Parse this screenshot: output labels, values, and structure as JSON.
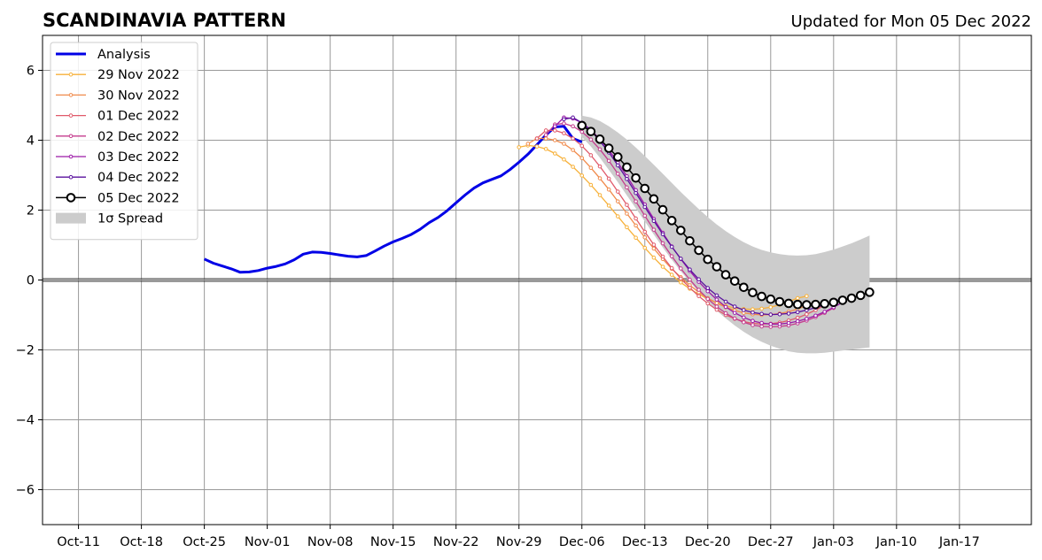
{
  "chart_data": {
    "type": "line",
    "title": "SCANDINAVIA PATTERN",
    "subtitle": "Updated for Mon 05 Dec 2022",
    "xlabel": "",
    "ylabel": "",
    "x_range": [
      "2022-10-07",
      "2023-01-25"
    ],
    "ylim": [
      -7,
      7
    ],
    "grid": true,
    "legend_position": "top-left",
    "x_ticks": [
      {
        "date": "2022-10-11",
        "label": "Oct-11"
      },
      {
        "date": "2022-10-18",
        "label": "Oct-18"
      },
      {
        "date": "2022-10-25",
        "label": "Oct-25"
      },
      {
        "date": "2022-11-01",
        "label": "Nov-01"
      },
      {
        "date": "2022-11-08",
        "label": "Nov-08"
      },
      {
        "date": "2022-11-15",
        "label": "Nov-15"
      },
      {
        "date": "2022-11-22",
        "label": "Nov-22"
      },
      {
        "date": "2022-11-29",
        "label": "Nov-29"
      },
      {
        "date": "2022-12-06",
        "label": "Dec-06"
      },
      {
        "date": "2022-12-13",
        "label": "Dec-13"
      },
      {
        "date": "2022-12-20",
        "label": "Dec-20"
      },
      {
        "date": "2022-12-27",
        "label": "Dec-27"
      },
      {
        "date": "2023-01-03",
        "label": "Jan-03"
      },
      {
        "date": "2023-01-10",
        "label": "Jan-10"
      },
      {
        "date": "2023-01-17",
        "label": "Jan-17"
      }
    ],
    "y_ticks": [
      {
        "value": 6,
        "label": "6"
      },
      {
        "value": 4,
        "label": "4"
      },
      {
        "value": 2,
        "label": "2"
      },
      {
        "value": 0,
        "label": "0"
      },
      {
        "value": -2,
        "label": "−2"
      },
      {
        "value": -4,
        "label": "−4"
      },
      {
        "value": -6,
        "label": "−6"
      }
    ],
    "series": [
      {
        "name": "Analysis",
        "color": "#0000e6",
        "style": "thick-line",
        "start": "2022-10-25",
        "values": [
          0.6,
          0.48,
          0.4,
          0.32,
          0.22,
          0.23,
          0.27,
          0.34,
          0.39,
          0.46,
          0.58,
          0.74,
          0.8,
          0.79,
          0.76,
          0.72,
          0.68,
          0.66,
          0.7,
          0.83,
          0.97,
          1.09,
          1.19,
          1.3,
          1.45,
          1.64,
          1.79,
          1.98,
          2.21,
          2.43,
          2.63,
          2.78,
          2.88,
          2.98,
          3.16,
          3.37,
          3.6,
          3.87,
          4.15,
          4.38,
          4.4,
          4.05,
          3.95
        ]
      },
      {
        "name": "29 Nov 2022",
        "color": "#f7b13a",
        "style": "line-small-markers",
        "start": "2022-11-29",
        "values": [
          3.8,
          3.85,
          3.82,
          3.75,
          3.62,
          3.45,
          3.24,
          2.99,
          2.72,
          2.43,
          2.13,
          1.82,
          1.51,
          1.21,
          0.92,
          0.64,
          0.38,
          0.15,
          -0.07,
          -0.25,
          -0.41,
          -0.54,
          -0.65,
          -0.74,
          -0.8,
          -0.83,
          -0.84,
          -0.82,
          -0.78,
          -0.71,
          -0.62,
          -0.52,
          -0.46
        ]
      },
      {
        "name": "30 Nov 2022",
        "color": "#f08a4b",
        "style": "line-small-markers",
        "start": "2022-11-30",
        "values": [
          3.9,
          4.05,
          4.05,
          4.0,
          3.9,
          3.72,
          3.49,
          3.21,
          2.91,
          2.59,
          2.25,
          1.9,
          1.56,
          1.22,
          0.9,
          0.6,
          0.32,
          0.08,
          -0.15,
          -0.35,
          -0.52,
          -0.66,
          -0.78,
          -0.87,
          -0.94,
          -0.98,
          -1.0,
          -0.99,
          -0.96,
          -0.91,
          -0.83,
          -0.73,
          -0.62
        ]
      },
      {
        "name": "01 Dec 2022",
        "color": "#e05a6a",
        "style": "line-small-markers",
        "start": "2022-12-01",
        "values": [
          4.05,
          4.28,
          4.28,
          4.2,
          4.05,
          3.84,
          3.57,
          3.25,
          2.9,
          2.53,
          2.15,
          1.76,
          1.38,
          1.01,
          0.67,
          0.34,
          0.04,
          -0.22,
          -0.46,
          -0.67,
          -0.85,
          -1.0,
          -1.11,
          -1.19,
          -1.24,
          -1.26,
          -1.25,
          -1.22,
          -1.16,
          -1.08,
          -0.98,
          -0.86,
          -0.72
        ]
      },
      {
        "name": "02 Dec 2022",
        "color": "#c43c8e",
        "style": "line-small-markers",
        "start": "2022-12-02",
        "values": [
          4.15,
          4.45,
          4.48,
          4.4,
          4.24,
          4.02,
          3.74,
          3.41,
          3.04,
          2.65,
          2.25,
          1.84,
          1.44,
          1.05,
          0.68,
          0.33,
          0.01,
          -0.28,
          -0.54,
          -0.76,
          -0.95,
          -1.1,
          -1.21,
          -1.29,
          -1.33,
          -1.34,
          -1.33,
          -1.3,
          -1.24,
          -1.16,
          -1.06,
          -0.94,
          -0.8
        ]
      },
      {
        "name": "03 Dec 2022",
        "color": "#9c1aa8",
        "style": "line-small-markers",
        "start": "2022-12-03",
        "values": [
          4.4,
          4.65,
          4.62,
          4.5,
          4.3,
          4.03,
          3.72,
          3.36,
          2.97,
          2.57,
          2.16,
          1.75,
          1.35,
          0.96,
          0.6,
          0.26,
          -0.05,
          -0.32,
          -0.56,
          -0.77,
          -0.94,
          -1.07,
          -1.17,
          -1.23,
          -1.26,
          -1.26,
          -1.23,
          -1.18,
          -1.11,
          -1.02,
          -0.91,
          -0.78,
          -0.64
        ]
      },
      {
        "name": "04 Dec 2022",
        "color": "#5a119e",
        "style": "line-small-markers",
        "start": "2022-12-04",
        "values": [
          4.6,
          4.65,
          4.5,
          4.27,
          3.98,
          3.65,
          3.28,
          2.89,
          2.49,
          2.09,
          1.69,
          1.31,
          0.95,
          0.61,
          0.3,
          0.02,
          -0.23,
          -0.44,
          -0.62,
          -0.76,
          -0.86,
          -0.93,
          -0.97,
          -0.99,
          -0.98,
          -0.96,
          -0.92,
          -0.86,
          -0.79,
          -0.71,
          -0.62,
          -0.53
        ]
      },
      {
        "name": "05 Dec 2022",
        "color": "#000000",
        "style": "line-open-circles",
        "start": "2022-12-06",
        "values": [
          4.42,
          4.25,
          4.03,
          3.77,
          3.52,
          3.23,
          2.92,
          2.62,
          2.32,
          2.01,
          1.7,
          1.42,
          1.12,
          0.85,
          0.59,
          0.38,
          0.15,
          -0.03,
          -0.21,
          -0.36,
          -0.47,
          -0.55,
          -0.62,
          -0.67,
          -0.7,
          -0.71,
          -0.7,
          -0.68,
          -0.64,
          -0.58,
          -0.52,
          -0.44,
          -0.35
        ]
      }
    ],
    "spread": {
      "name": "1σ Spread",
      "color": "#cccccc",
      "start": "2022-12-06",
      "upper": [
        4.7,
        4.65,
        4.55,
        4.4,
        4.22,
        4.02,
        3.79,
        3.55,
        3.3,
        3.04,
        2.78,
        2.52,
        2.27,
        2.03,
        1.8,
        1.59,
        1.4,
        1.23,
        1.08,
        0.96,
        0.86,
        0.79,
        0.74,
        0.71,
        0.7,
        0.71,
        0.74,
        0.8,
        0.87,
        0.96,
        1.05,
        1.16,
        1.27
      ],
      "lower": [
        4.1,
        3.82,
        3.5,
        3.15,
        2.8,
        2.42,
        2.05,
        1.68,
        1.3,
        0.93,
        0.58,
        0.25,
        -0.05,
        -0.35,
        -0.63,
        -0.88,
        -1.1,
        -1.3,
        -1.48,
        -1.64,
        -1.77,
        -1.88,
        -1.97,
        -2.04,
        -2.08,
        -2.1,
        -2.1,
        -2.08,
        -2.05,
        -2.02,
        -1.99,
        -1.96,
        -1.93
      ]
    }
  }
}
